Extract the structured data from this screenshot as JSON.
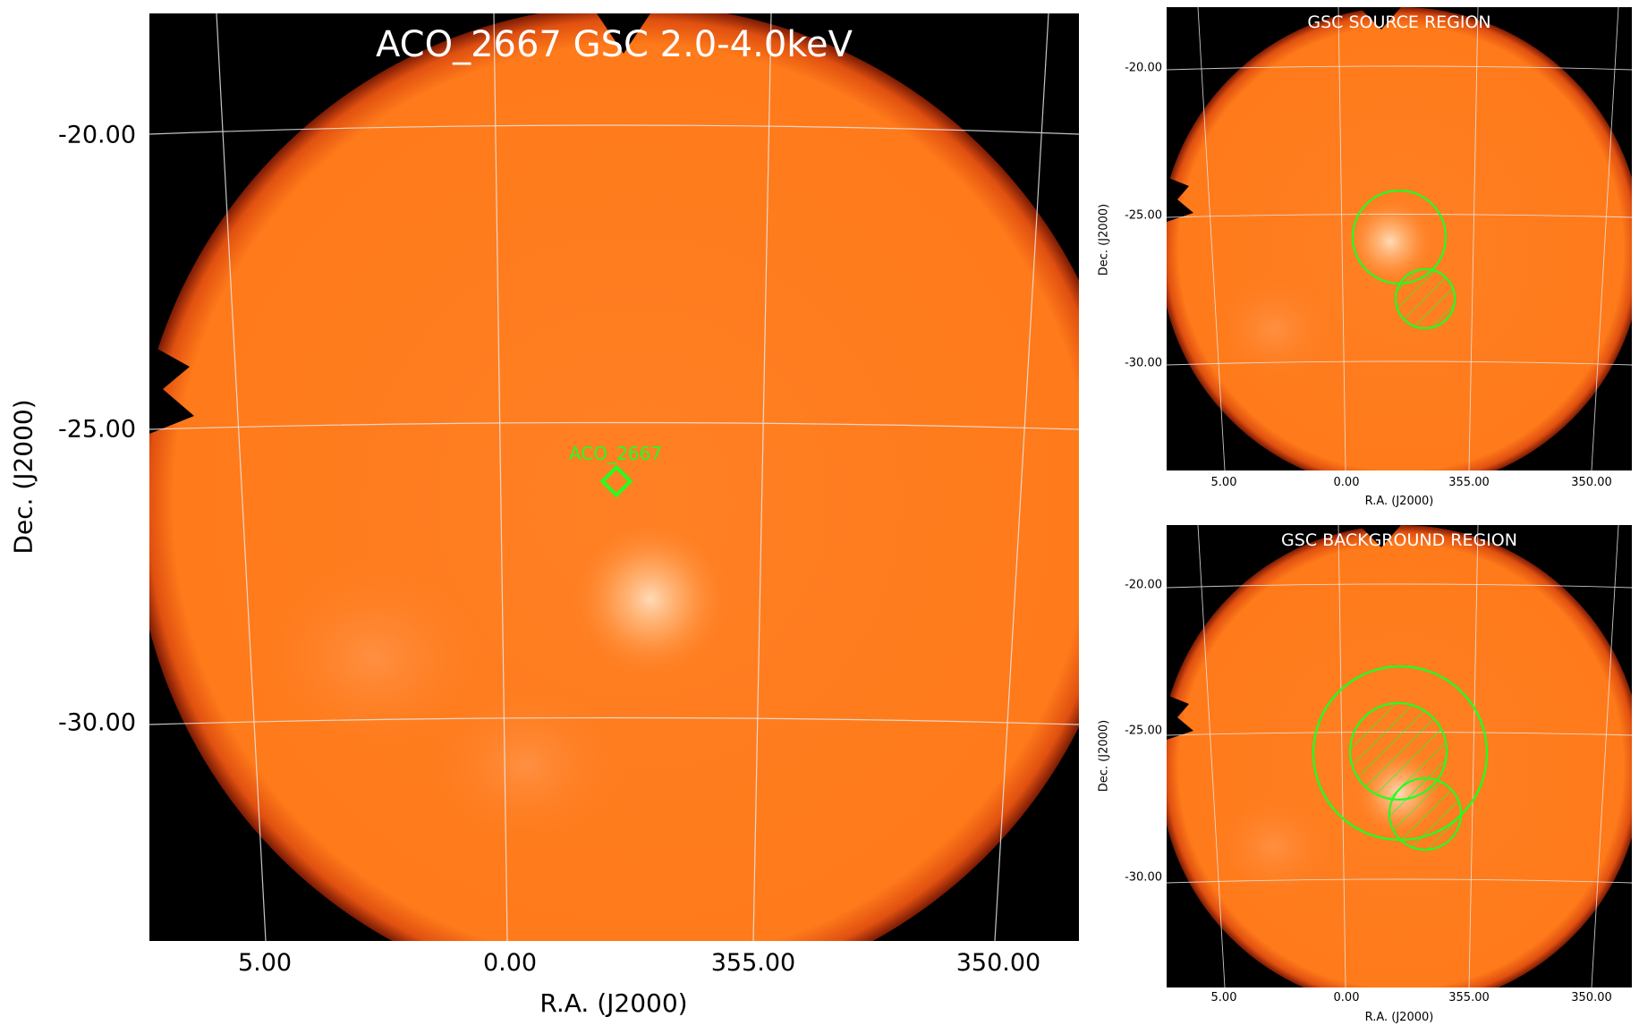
{
  "main": {
    "title": "ACO_2667 GSC 2.0-4.0keV",
    "marker_label": "ACO_2667",
    "ra_ticks": [
      "5.00",
      "0.00",
      "355.00",
      "350.00"
    ],
    "dec_ticks": [
      "-20.00",
      "-25.00",
      "-30.00"
    ],
    "xlabel": "R.A. (J2000)",
    "ylabel": "Dec. (J2000)"
  },
  "source_panel": {
    "title": "GSC SOURCE REGION",
    "ra_ticks": [
      "5.00",
      "0.00",
      "355.00",
      "350.00"
    ],
    "dec_ticks": [
      "-20.00",
      "-25.00",
      "-30.00"
    ],
    "xlabel": "R.A. (J2000)",
    "ylabel": "Dec. (J2000)"
  },
  "background_panel": {
    "title": "GSC BACKGROUND REGION",
    "ra_ticks": [
      "5.00",
      "0.00",
      "355.00",
      "350.00"
    ],
    "dec_ticks": [
      "-20.00",
      "-25.00",
      "-30.00"
    ],
    "xlabel": "R.A. (J2000)",
    "ylabel": "Dec. (J2000)"
  },
  "colors": {
    "field": "#ff7d1e",
    "background": "#000000",
    "region": "#22ff22",
    "grid": "#e8e8e8"
  }
}
